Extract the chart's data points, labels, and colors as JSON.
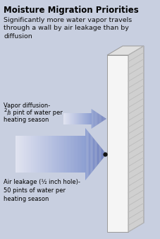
{
  "bg_color": "#c8cfe0",
  "title": "Moisture Migration Priorities",
  "subtitle": "Significantly more water vapor travels\nthrough a wall by air leakage than by\ndiffusion",
  "title_fontsize": 8.5,
  "subtitle_fontsize": 6.8,
  "small_arrow_label_line1": "Vapor diffusion-",
  "small_arrow_label_line2": "2/3 pint of water per",
  "small_arrow_label_line3": "heating season",
  "large_arrow_label": "Air leakage (½ inch hole)-\n50 pints of water per\nheating season",
  "label_fontsize": 6.0,
  "wall_front_color": "#f5f5f5",
  "wall_top_color": "#e0e0e0",
  "wall_side_color": "#d0d0d0",
  "wall_edge_color": "#999999",
  "hatch_color": "#bbbbbb",
  "arrow_color_left": "#dde0ee",
  "arrow_color_right": "#6878b0",
  "dot_color": "#111111"
}
